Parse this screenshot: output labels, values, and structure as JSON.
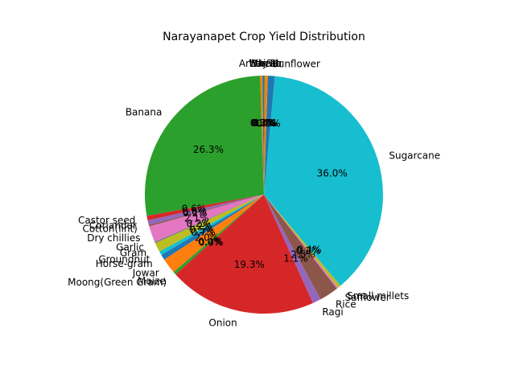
{
  "chart_data": {
    "type": "pie",
    "title": "Narayanapet Crop Yield Distribution",
    "start_angle_deg": 90,
    "direction": "counterclockwise",
    "slices": [
      {
        "label": "Bajra",
        "value": 0.2,
        "pct_label": "0.2%",
        "color": "#1f77b4"
      },
      {
        "label": "Arhar/Tur",
        "value": 0.3,
        "pct_label": "0.3%",
        "color": "#ff7f0e"
      },
      {
        "label": "Banana",
        "value": 26.3,
        "pct_label": "26.3%",
        "color": "#2ca02c"
      },
      {
        "label": "Castor seed",
        "value": 0.6,
        "pct_label": "0.6%",
        "color": "#d62728"
      },
      {
        "label": "Coriander",
        "value": 0.6,
        "pct_label": "0.6%",
        "color": "#9467bd"
      },
      {
        "label": "Cotton(lint)",
        "value": 0.2,
        "pct_label": "0.2%",
        "color": "#8c564b"
      },
      {
        "label": "Dry chillies",
        "value": 2.1,
        "pct_label": "2.1%",
        "color": "#e377c2"
      },
      {
        "label": "Garlic",
        "value": 0.2,
        "pct_label": "0.2%",
        "color": "#7f7f7f"
      },
      {
        "label": "Gram",
        "value": 1.2,
        "pct_label": "1.2%",
        "color": "#bcbd22"
      },
      {
        "label": "Groundnut",
        "value": 0.5,
        "pct_label": "0.5%",
        "color": "#17becf"
      },
      {
        "label": "Horse-gram",
        "value": 0.7,
        "pct_label": "0.7%",
        "color": "#1f77b4"
      },
      {
        "label": "Jowar",
        "value": 2.0,
        "pct_label": "2.0%",
        "color": "#ff7f0e"
      },
      {
        "label": "Maize",
        "value": 0.4,
        "pct_label": "0.4%",
        "color": "#2ca02c"
      },
      {
        "label": "Moong(Green Gram)",
        "value": 0.0,
        "pct_label": "0.0%",
        "color": "#bcbd22"
      },
      {
        "label": "Onion",
        "value": 19.3,
        "pct_label": "19.3%",
        "color": "#d62728"
      },
      {
        "label": "Ragi",
        "value": 1.1,
        "pct_label": "1.1%",
        "color": "#9467bd"
      },
      {
        "label": "Rice",
        "value": 2.5,
        "pct_label": "2.5%",
        "color": "#8c564b"
      },
      {
        "label": "Safflower",
        "value": 0.2,
        "pct_label": "0.2%",
        "color": "#e377c2"
      },
      {
        "label": "Small millets",
        "value": 0.4,
        "pct_label": "0.4%",
        "color": "#bcbd22"
      },
      {
        "label": "Sugarcane",
        "value": 36.0,
        "pct_label": "36.0%",
        "color": "#17becf"
      },
      {
        "label": "Sunflower",
        "value": 0.9,
        "pct_label": "0.9%",
        "color": "#1f77b4"
      },
      {
        "label": "Urad",
        "value": 0.4,
        "pct_label": "0.4%",
        "color": "#ff7f0e"
      },
      {
        "label": "Wheat",
        "value": 0.1,
        "pct_label": "0.1%",
        "color": "#2ca02c"
      }
    ]
  }
}
